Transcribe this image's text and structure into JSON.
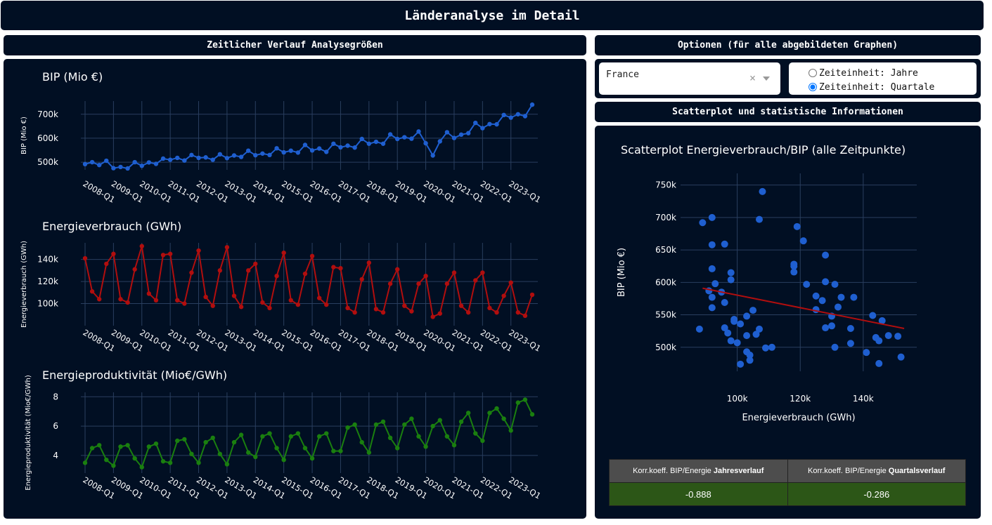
{
  "header": {
    "title": "Länderanalyse im Detail"
  },
  "left_section": {
    "title": "Zeitlicher Verlauf Analysegrößen"
  },
  "options": {
    "title": "Optionen (für alle abgebildeten Graphen)",
    "country_value": "France",
    "clear_glyph": "×",
    "radio_years": "Zeiteinheit: Jahre",
    "radio_quarters": "Zeiteinheit: Quartale",
    "selected": "quarters"
  },
  "right_section": {
    "title": "Scatterplot und statistische Informationen"
  },
  "stats": {
    "col1_prefix": "Korr.koeff. BIP/Energie ",
    "col1_bold": "Jahresverlauf",
    "col2_prefix": "Korr.koeff. BIP/Energie ",
    "col2_bold": "Quartalsverlauf",
    "val1": "-0.888",
    "val2": "-0.286"
  },
  "colors": {
    "background": "#010f23",
    "grid": "#2a3f5f",
    "bip": "#1f5fd0",
    "energy": "#b10e0e",
    "productivity": "#1a7f0f",
    "scatter": "#1f5fd0",
    "trend": "#b10e0e"
  },
  "chart_data": [
    {
      "type": "line",
      "title": "BIP (Mio €)",
      "ylabel": "BIP (Mio €)",
      "color": "bip",
      "x_tick_labels": [
        "2008-Q1",
        "2009-Q1",
        "2010-Q1",
        "2011-Q1",
        "2012-Q1",
        "2013-Q1",
        "2014-Q1",
        "2015-Q1",
        "2016-Q1",
        "2017-Q1",
        "2018-Q1",
        "2019-Q1",
        "2020-Q1",
        "2021-Q1",
        "2022-Q1",
        "2023-Q1"
      ],
      "y_ticks": [
        {
          "v": 500000,
          "t": "500k"
        },
        {
          "v": 600000,
          "t": "600k"
        },
        {
          "v": 700000,
          "t": "700k"
        }
      ],
      "ylim": [
        468000,
        755000
      ],
      "values": [
        492000,
        500000,
        488000,
        506000,
        475000,
        480000,
        474000,
        500000,
        485000,
        499000,
        493000,
        515000,
        510000,
        518000,
        507000,
        530000,
        518000,
        520000,
        510000,
        533000,
        517000,
        528000,
        522000,
        548000,
        529000,
        536000,
        530000,
        558000,
        541000,
        548000,
        540000,
        572000,
        549000,
        557000,
        543000,
        577000,
        562000,
        569000,
        561000,
        597000,
        577000,
        585000,
        577000,
        616000,
        597000,
        604000,
        598000,
        628000,
        579000,
        528000,
        587000,
        625000,
        601000,
        615000,
        621000,
        664000,
        642000,
        659000,
        658000,
        697000,
        686000,
        700000,
        692000,
        740000
      ]
    },
    {
      "type": "line",
      "title": "Energieverbrauch (GWh)",
      "ylabel": "Energieverbrauch (GWh)",
      "color": "energy",
      "x_tick_labels": [
        "2008-Q1",
        "2009-Q1",
        "2010-Q1",
        "2011-Q1",
        "2012-Q1",
        "2013-Q1",
        "2014-Q1",
        "2015-Q1",
        "2016-Q1",
        "2017-Q1",
        "2018-Q1",
        "2019-Q1",
        "2020-Q1",
        "2021-Q1",
        "2022-Q1",
        "2023-Q1"
      ],
      "y_ticks": [
        {
          "v": 100000,
          "t": "100k"
        },
        {
          "v": 120000,
          "t": "120k"
        },
        {
          "v": 140000,
          "t": "140k"
        }
      ],
      "ylim": [
        80000,
        155000
      ],
      "values": [
        141000,
        111000,
        104000,
        136000,
        145000,
        104000,
        101000,
        131000,
        152000,
        109000,
        103000,
        144000,
        145000,
        103000,
        100000,
        128000,
        148000,
        106000,
        98000,
        130000,
        151000,
        107000,
        97000,
        130000,
        136000,
        101000,
        96000,
        125000,
        146000,
        103000,
        99000,
        127000,
        143000,
        105000,
        99000,
        133000,
        132000,
        96000,
        92000,
        122000,
        137000,
        95000,
        92000,
        118000,
        131000,
        98000,
        93000,
        118000,
        125000,
        88000,
        91000,
        118000,
        128000,
        98000,
        92000,
        121000,
        128000,
        96000,
        92000,
        107000,
        119000,
        92000,
        89000,
        108000
      ]
    },
    {
      "type": "line",
      "title": "Energieproduktivität (Mio€/GWh)",
      "ylabel": "Energieproduktivität (Mio€/GWh)",
      "color": "productivity",
      "x_tick_labels": [
        "2008-Q1",
        "2009-Q1",
        "2010-Q1",
        "2011-Q1",
        "2012-Q1",
        "2013-Q1",
        "2014-Q1",
        "2015-Q1",
        "2016-Q1",
        "2017-Q1",
        "2018-Q1",
        "2019-Q1",
        "2020-Q1",
        "2021-Q1",
        "2022-Q1",
        "2023-Q1"
      ],
      "y_ticks": [
        {
          "v": 4,
          "t": "4"
        },
        {
          "v": 6,
          "t": "6"
        },
        {
          "v": 8,
          "t": "8"
        }
      ],
      "ylim": [
        2.8,
        8.3
      ],
      "values": [
        3.5,
        4.5,
        4.7,
        3.7,
        3.3,
        4.6,
        4.7,
        3.8,
        3.2,
        4.6,
        4.8,
        3.6,
        3.5,
        5.0,
        5.1,
        4.1,
        3.5,
        4.9,
        5.2,
        4.1,
        3.4,
        4.9,
        5.4,
        4.2,
        3.9,
        5.3,
        5.5,
        4.5,
        3.7,
        5.3,
        5.5,
        4.5,
        3.8,
        5.3,
        5.5,
        4.3,
        4.3,
        5.9,
        6.1,
        4.9,
        4.2,
        6.1,
        6.3,
        5.2,
        4.5,
        6.1,
        6.5,
        5.3,
        4.6,
        6.0,
        6.4,
        5.3,
        4.7,
        6.3,
        6.9,
        5.5,
        5.0,
        6.9,
        7.2,
        6.5,
        5.7,
        7.6,
        7.8,
        6.8
      ]
    },
    {
      "type": "scatter",
      "title": "Scatterplot Energieverbrauch/BIP (alle Zeitpunkte)",
      "xlabel": "Energieverbrauch (GWh)",
      "ylabel": "BIP (Mio €)",
      "xlim": [
        82000,
        157000
      ],
      "ylim": [
        463000,
        768000
      ],
      "x_ticks": [
        {
          "v": 100000,
          "t": "100k"
        },
        {
          "v": 120000,
          "t": "120k"
        },
        {
          "v": 140000,
          "t": "140k"
        }
      ],
      "y_ticks": [
        {
          "v": 500000,
          "t": "500k"
        },
        {
          "v": 550000,
          "t": "550k"
        },
        {
          "v": 600000,
          "t": "600k"
        },
        {
          "v": 650000,
          "t": "650k"
        },
        {
          "v": 700000,
          "t": "700k"
        },
        {
          "v": 750000,
          "t": "750k"
        }
      ],
      "points": [
        [
          141000,
          492000
        ],
        [
          111000,
          500000
        ],
        [
          104000,
          488000
        ],
        [
          136000,
          506000
        ],
        [
          145000,
          475000
        ],
        [
          104000,
          480000
        ],
        [
          101000,
          474000
        ],
        [
          131000,
          500000
        ],
        [
          152000,
          485000
        ],
        [
          109000,
          499000
        ],
        [
          103000,
          493000
        ],
        [
          144000,
          515000
        ],
        [
          145000,
          510000
        ],
        [
          103000,
          518000
        ],
        [
          100000,
          507000
        ],
        [
          128000,
          530000
        ],
        [
          148000,
          518000
        ],
        [
          106000,
          520000
        ],
        [
          98000,
          510000
        ],
        [
          130000,
          533000
        ],
        [
          151000,
          517000
        ],
        [
          107000,
          528000
        ],
        [
          97000,
          522000
        ],
        [
          130000,
          548000
        ],
        [
          136000,
          529000
        ],
        [
          101000,
          536000
        ],
        [
          96000,
          530000
        ],
        [
          125000,
          558000
        ],
        [
          146000,
          541000
        ],
        [
          103000,
          548000
        ],
        [
          99000,
          540000
        ],
        [
          127000,
          572000
        ],
        [
          143000,
          549000
        ],
        [
          105000,
          557000
        ],
        [
          99000,
          543000
        ],
        [
          133000,
          577000
        ],
        [
          132000,
          562000
        ],
        [
          96000,
          569000
        ],
        [
          92000,
          561000
        ],
        [
          122000,
          597000
        ],
        [
          137000,
          577000
        ],
        [
          95000,
          585000
        ],
        [
          92000,
          577000
        ],
        [
          118000,
          616000
        ],
        [
          131000,
          597000
        ],
        [
          98000,
          604000
        ],
        [
          93000,
          598000
        ],
        [
          118000,
          628000
        ],
        [
          125000,
          579000
        ],
        [
          88000,
          528000
        ],
        [
          91000,
          587000
        ],
        [
          118000,
          625000
        ],
        [
          128000,
          601000
        ],
        [
          98000,
          615000
        ],
        [
          92000,
          621000
        ],
        [
          121000,
          664000
        ],
        [
          128000,
          642000
        ],
        [
          96000,
          659000
        ],
        [
          92000,
          658000
        ],
        [
          107000,
          697000
        ],
        [
          119000,
          686000
        ],
        [
          92000,
          700000
        ],
        [
          89000,
          692000
        ],
        [
          108000,
          740000
        ]
      ],
      "trend": [
        [
          89000,
          591000
        ],
        [
          153000,
          529000
        ]
      ]
    }
  ]
}
